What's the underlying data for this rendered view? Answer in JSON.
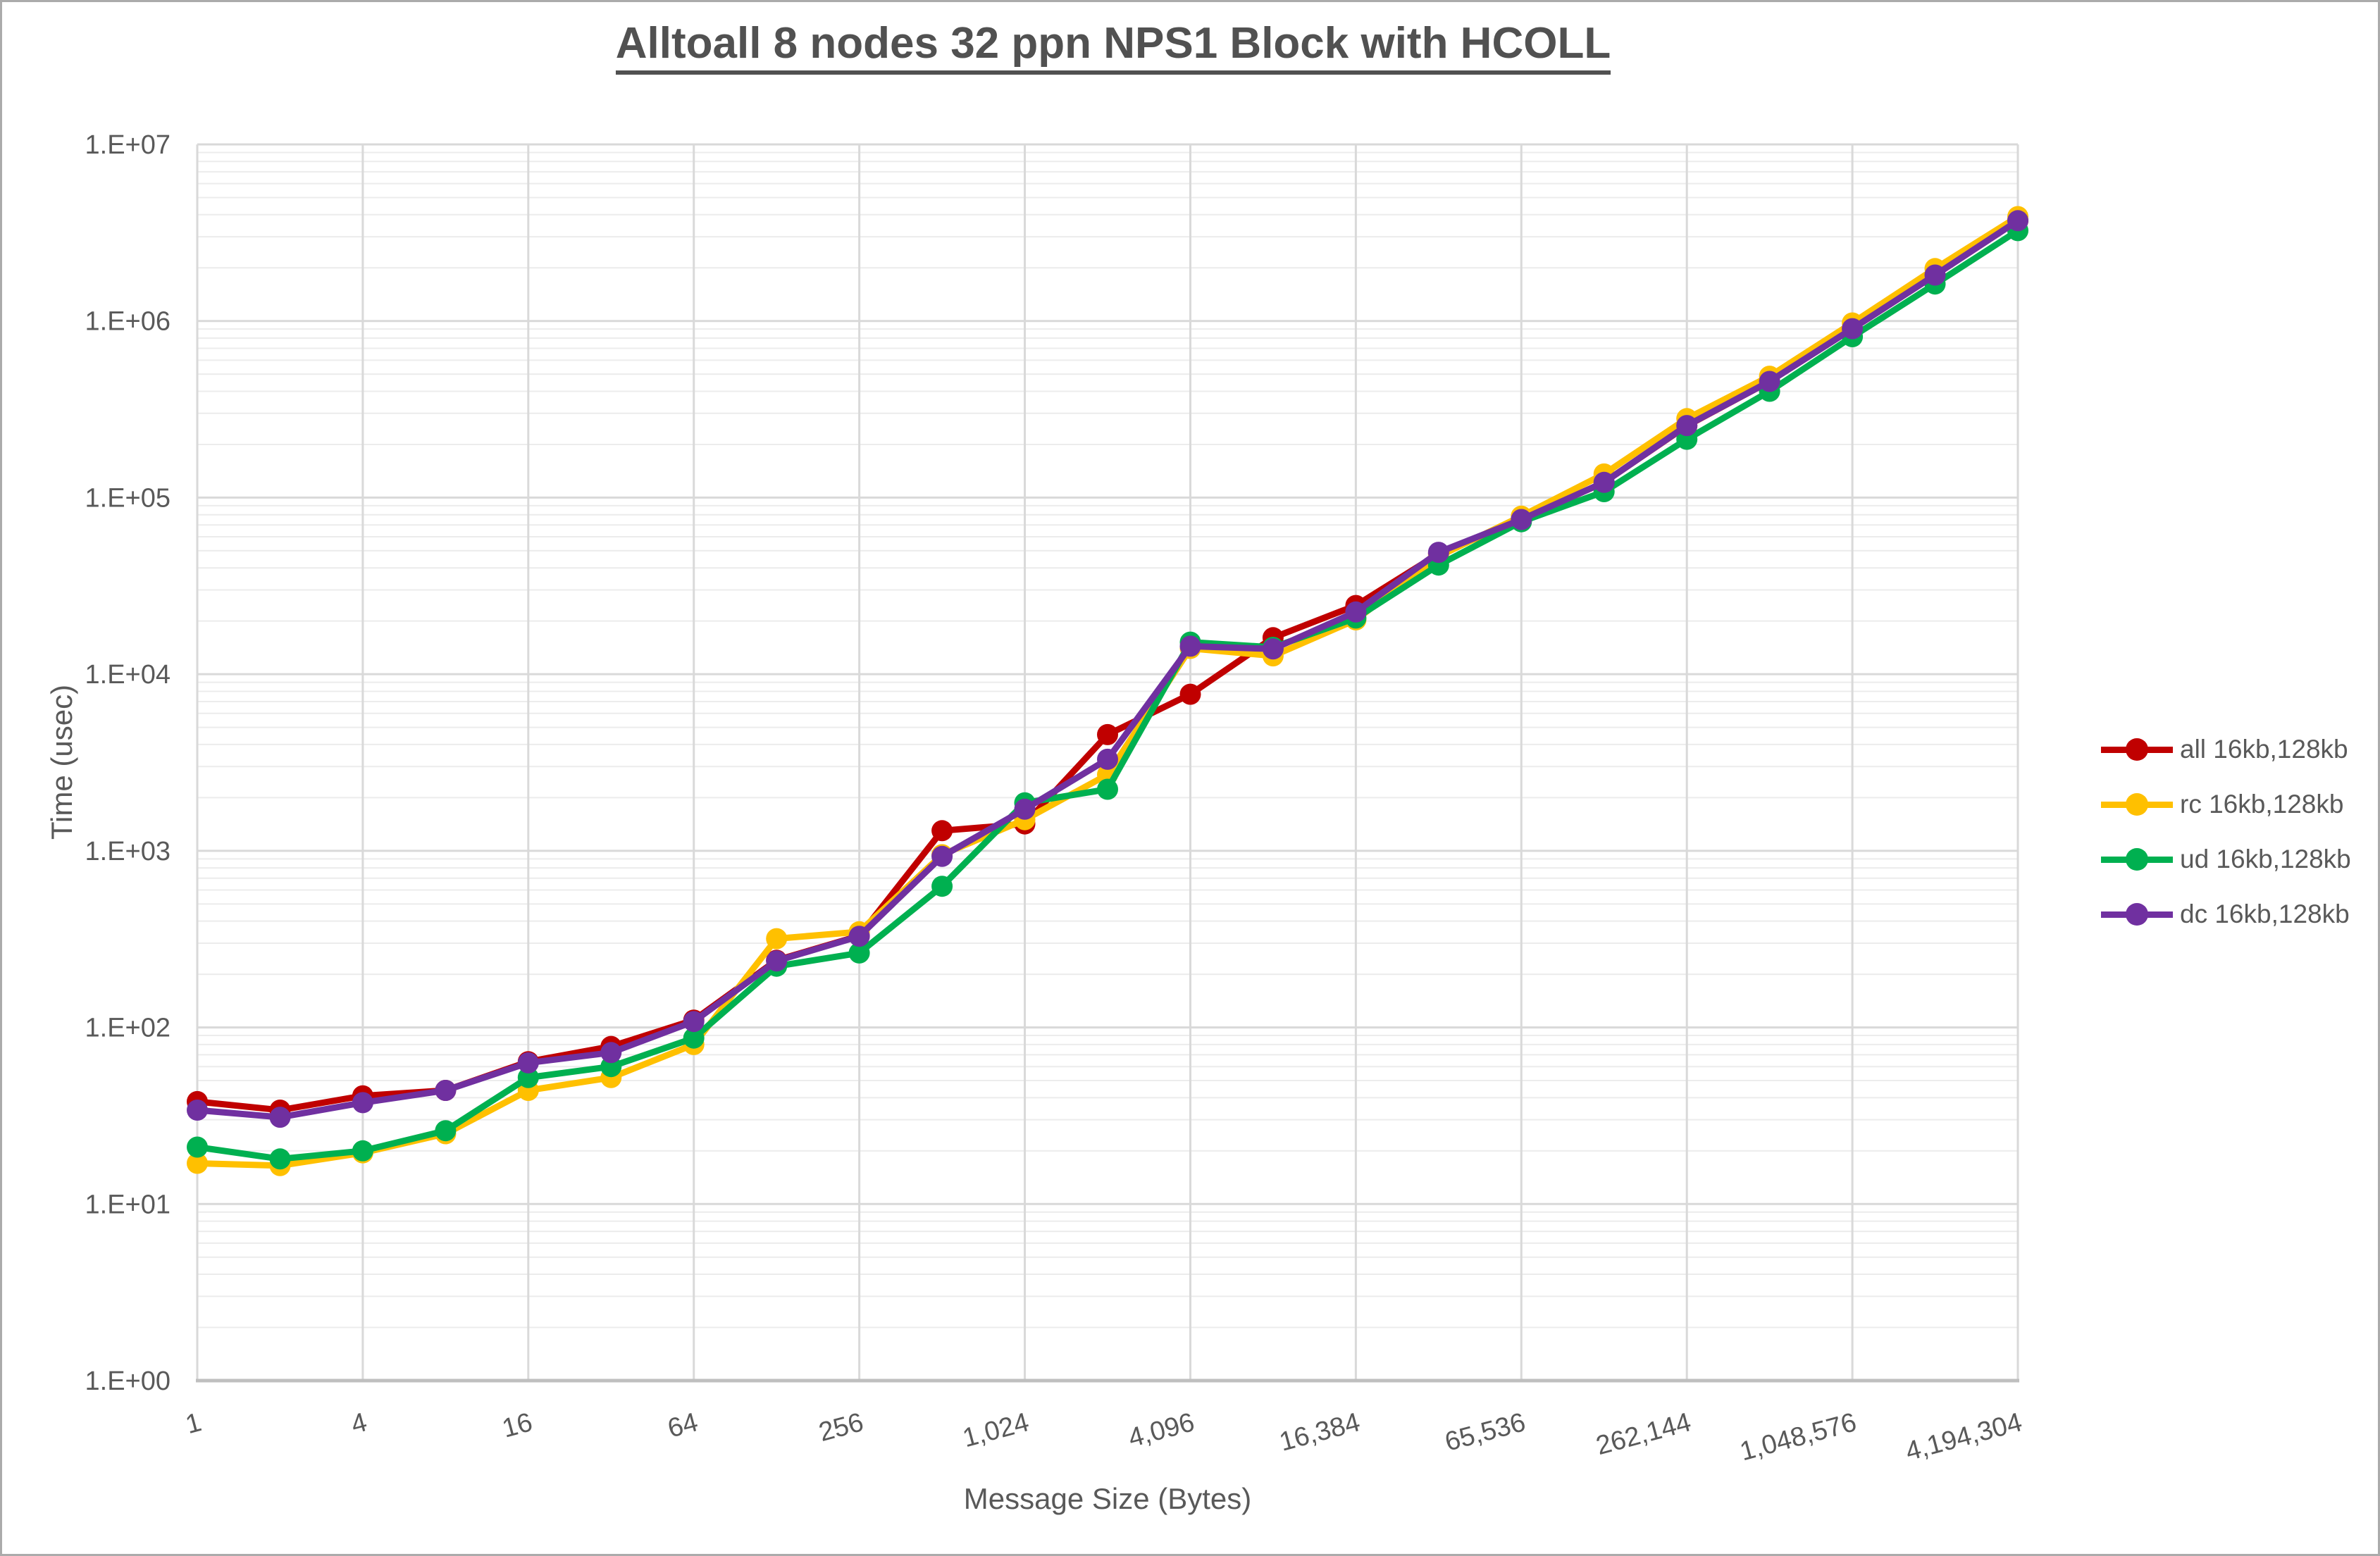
{
  "title": "Alltoall 8 nodes 32 ppn NPS1 Block with HCOLL",
  "chart_data": {
    "type": "line",
    "title": "Alltoall 8 nodes 32 ppn NPS1 Block with HCOLL",
    "xlabel": "Message Size (Bytes)",
    "ylabel": "Time (usec)",
    "x_scale": "log2",
    "y_scale": "log10",
    "xlim": [
      1,
      4194304
    ],
    "ylim": [
      1,
      10000000
    ],
    "grid": {
      "major_horizontal": true,
      "minor_horizontal": true,
      "major_vertical": true
    },
    "legend_position": "right",
    "x_tick_labels": [
      "1",
      "4",
      "16",
      "64",
      "256",
      "1,024",
      "4,096",
      "16,384",
      "65,536",
      "262,144",
      "1,048,576",
      "4,194,304"
    ],
    "y_tick_labels": [
      "1.E+00",
      "1.E+01",
      "1.E+02",
      "1.E+03",
      "1.E+04",
      "1.E+05",
      "1.E+06",
      "1.E+07"
    ],
    "sizes": [
      1,
      2,
      4,
      8,
      16,
      32,
      64,
      128,
      256,
      512,
      1024,
      2048,
      4096,
      8192,
      16384,
      32768,
      65536,
      131072,
      262144,
      524288,
      1048576,
      2097152,
      4194304
    ],
    "series": [
      {
        "name": "all 16kb,128kb",
        "color": "#C00000",
        "values": [
          38,
          34,
          41,
          44,
          64,
          78,
          110,
          240,
          330,
          1300,
          1420,
          4550,
          7700,
          16100,
          24500,
          48000,
          75000,
          122000,
          255000,
          455000,
          905000,
          1820000,
          3700000
        ]
      },
      {
        "name": "rc 16kb,128kb",
        "color": "#FFC000",
        "values": [
          17,
          16.5,
          19.5,
          25,
          44,
          52,
          80,
          318,
          348,
          950,
          1500,
          2700,
          14000,
          12700,
          20300,
          46500,
          78500,
          136000,
          280000,
          487000,
          975000,
          1980000,
          3900000
        ]
      },
      {
        "name": "ud 16kb,128kb",
        "color": "#00B050",
        "values": [
          21,
          18,
          20,
          26,
          52,
          60,
          87,
          222,
          264,
          630,
          1870,
          2230,
          15200,
          14200,
          20800,
          41500,
          73000,
          108000,
          214000,
          400000,
          815000,
          1620000,
          3250000
        ]
      },
      {
        "name": "dc 16kb,128kb",
        "color": "#7030A0",
        "values": [
          34,
          31,
          37.5,
          44,
          63,
          72,
          108,
          238,
          328,
          930,
          1720,
          3300,
          14400,
          13900,
          22500,
          49000,
          75200,
          122000,
          256000,
          455000,
          905000,
          1820000,
          3700000
        ]
      }
    ]
  },
  "style_colors": {
    "axis_text": "#595959",
    "major_grid": "#D9D9D9",
    "minor_grid": "#ECECEC",
    "axis_line": "#BFBFBF",
    "frame_border": "#ABABAB"
  }
}
